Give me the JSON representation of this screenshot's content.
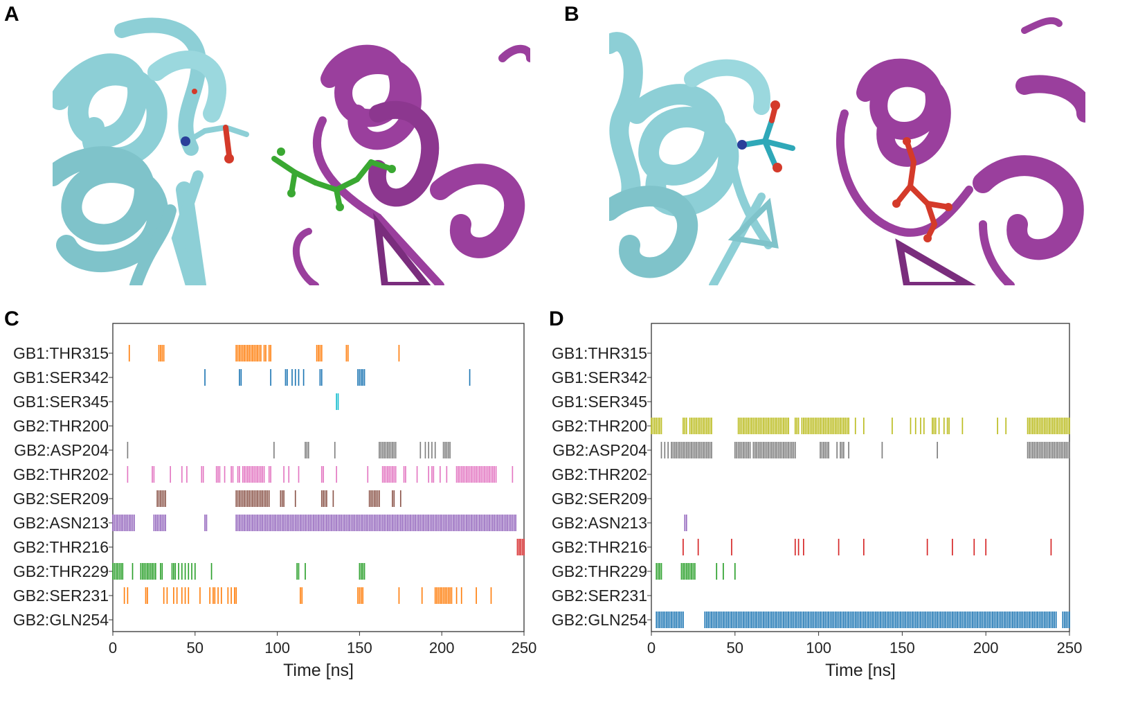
{
  "panels": {
    "a": "A",
    "b": "B",
    "c": "C",
    "d": "D"
  },
  "icons": {
    "panel_a": "protein-complex-green-ligand-icon",
    "panel_b": "protein-complex-red-ligand-icon"
  },
  "colors": {
    "cyan_protein": "#8dcfd6",
    "magenta_protein": "#9a3f9d",
    "green_ligand": "#3aa832",
    "red_ligand": "#d43a2a"
  },
  "chart_data": [
    {
      "type": "event",
      "panel": "C",
      "xlabel": "Time [ns]",
      "xlim": [
        0,
        250
      ],
      "xticks": [
        0,
        50,
        100,
        150,
        200,
        250
      ],
      "series": [
        {
          "name": "GB1:THR315",
          "color": "#ff7f0e",
          "x": [
            10,
            28,
            29,
            30,
            31,
            75,
            76,
            77,
            78,
            79,
            80,
            81,
            82,
            83,
            84,
            85,
            86,
            87,
            88,
            89,
            90,
            92,
            93,
            95,
            96,
            124,
            125,
            126,
            127,
            142,
            143,
            174
          ]
        },
        {
          "name": "GB1:SER342",
          "color": "#1f77b4",
          "x": [
            56,
            77,
            78,
            96,
            105,
            106,
            109,
            111,
            113,
            116,
            126,
            127,
            149,
            150,
            151,
            152,
            153,
            217
          ]
        },
        {
          "name": "GB1:SER345",
          "color": "#17becf",
          "x": [
            136,
            137
          ]
        },
        {
          "name": "GB2:THR200",
          "color": "#bcbd22",
          "x": []
        },
        {
          "name": "GB2:ASP204",
          "color": "#7f7f7f",
          "x": [
            9,
            98,
            117,
            118,
            119,
            135,
            162,
            163,
            164,
            165,
            166,
            167,
            168,
            169,
            170,
            171,
            172,
            187,
            190,
            192,
            194,
            196,
            201,
            202,
            203,
            204,
            205
          ]
        },
        {
          "name": "GB2:THR202",
          "color": "#e377c2",
          "x": [
            9,
            24,
            25,
            35,
            42,
            45,
            54,
            55,
            63,
            64,
            65,
            68,
            72,
            73,
            76,
            77,
            79,
            80,
            81,
            82,
            83,
            84,
            85,
            86,
            87,
            88,
            89,
            90,
            91,
            92,
            95,
            96,
            104,
            107,
            113,
            127,
            128,
            136,
            155,
            164,
            165,
            166,
            167,
            168,
            169,
            170,
            171,
            172,
            177,
            178,
            185,
            192,
            194,
            195,
            199,
            203,
            209,
            210,
            211,
            212,
            213,
            214,
            215,
            216,
            217,
            218,
            219,
            220,
            221,
            222,
            223,
            224,
            225,
            226,
            227,
            228,
            229,
            230,
            231,
            232,
            233,
            243
          ]
        },
        {
          "name": "GB2:SER209",
          "color": "#8c564b",
          "x": [
            27,
            28,
            29,
            30,
            31,
            32,
            75,
            76,
            77,
            78,
            79,
            80,
            81,
            82,
            83,
            84,
            85,
            86,
            87,
            88,
            89,
            90,
            91,
            92,
            93,
            94,
            95,
            102,
            103,
            104,
            111,
            127,
            128,
            129,
            130,
            134,
            156,
            157,
            158,
            159,
            160,
            161,
            162,
            170,
            171,
            175
          ]
        },
        {
          "name": "GB2:ASN213",
          "color": "#9467bd",
          "x": [
            0,
            1,
            2,
            3,
            4,
            5,
            6,
            7,
            8,
            9,
            10,
            11,
            12,
            13,
            25,
            26,
            27,
            28,
            29,
            30,
            31,
            32,
            56,
            57,
            75,
            76,
            77,
            78,
            79,
            80,
            81,
            82,
            83,
            84,
            85,
            86,
            87,
            88,
            89,
            90,
            91,
            92,
            93,
            94,
            95,
            96,
            97,
            98,
            99,
            100,
            101,
            102,
            103,
            104,
            105,
            106,
            107,
            108,
            109,
            110,
            111,
            112,
            113,
            114,
            115,
            116,
            117,
            118,
            119,
            120,
            121,
            122,
            123,
            124,
            125,
            126,
            127,
            128,
            129,
            130,
            131,
            132,
            133,
            134,
            135,
            136,
            137,
            138,
            139,
            140,
            141,
            142,
            143,
            144,
            145,
            146,
            147,
            148,
            149,
            150,
            151,
            152,
            153,
            154,
            155,
            156,
            157,
            158,
            159,
            160,
            161,
            162,
            163,
            164,
            165,
            166,
            167,
            168,
            169,
            170,
            171,
            172,
            173,
            174,
            175,
            176,
            177,
            178,
            179,
            180,
            181,
            182,
            183,
            184,
            185,
            186,
            187,
            188,
            189,
            190,
            191,
            192,
            193,
            194,
            195,
            196,
            197,
            198,
            199,
            200,
            201,
            202,
            203,
            204,
            205,
            206,
            207,
            208,
            209,
            210,
            211,
            212,
            213,
            214,
            215,
            216,
            217,
            218,
            219,
            220,
            221,
            222,
            223,
            224,
            225,
            226,
            227,
            228,
            229,
            230,
            231,
            232,
            233,
            234,
            235,
            236,
            237,
            238,
            239,
            240,
            241,
            242,
            243,
            244,
            245
          ]
        },
        {
          "name": "GB2:THR216",
          "color": "#d62728",
          "x": [
            246,
            247,
            248,
            249,
            250
          ]
        },
        {
          "name": "GB2:THR229",
          "color": "#2ca02c",
          "x": [
            0,
            1,
            2,
            3,
            4,
            5,
            6,
            12,
            17,
            18,
            19,
            20,
            21,
            22,
            23,
            24,
            25,
            26,
            29,
            30,
            36,
            37,
            38,
            40,
            42,
            44,
            46,
            48,
            50,
            60,
            112,
            113,
            117,
            150,
            151,
            152,
            153
          ]
        },
        {
          "name": "GB2:SER231",
          "color": "#ff7f0e",
          "x": [
            7,
            9,
            20,
            21,
            31,
            33,
            37,
            39,
            42,
            44,
            46,
            53,
            59,
            61,
            62,
            64,
            66,
            70,
            72,
            74,
            75,
            114,
            115,
            149,
            150,
            151,
            152,
            174,
            188,
            196,
            197,
            198,
            199,
            200,
            201,
            202,
            203,
            204,
            205,
            206,
            209,
            212,
            221,
            230
          ]
        },
        {
          "name": "GB2:GLN254",
          "color": "#1f77b4",
          "x": []
        }
      ]
    },
    {
      "type": "event",
      "panel": "D",
      "xlabel": "Time [ns]",
      "xlim": [
        0,
        250
      ],
      "xticks": [
        0,
        50,
        100,
        150,
        200,
        250
      ],
      "series": [
        {
          "name": "GB1:THR315",
          "color": "#ff7f0e",
          "x": []
        },
        {
          "name": "GB1:SER342",
          "color": "#1f77b4",
          "x": []
        },
        {
          "name": "GB1:SER345",
          "color": "#17becf",
          "x": []
        },
        {
          "name": "GB2:THR200",
          "color": "#bcbd22",
          "x": [
            0,
            1,
            2,
            3,
            4,
            5,
            6,
            19,
            20,
            21,
            23,
            24,
            25,
            26,
            27,
            28,
            29,
            30,
            31,
            32,
            33,
            34,
            35,
            36,
            52,
            53,
            54,
            55,
            56,
            57,
            58,
            59,
            60,
            61,
            62,
            63,
            64,
            65,
            66,
            67,
            68,
            69,
            70,
            71,
            72,
            73,
            74,
            75,
            76,
            77,
            78,
            79,
            80,
            81,
            82,
            86,
            87,
            88,
            90,
            91,
            92,
            93,
            94,
            95,
            96,
            97,
            98,
            99,
            100,
            101,
            102,
            103,
            104,
            105,
            106,
            107,
            108,
            109,
            110,
            111,
            112,
            113,
            114,
            115,
            116,
            117,
            118,
            122,
            127,
            144,
            155,
            158,
            161,
            163,
            168,
            169,
            170,
            172,
            175,
            177,
            178,
            186,
            207,
            212,
            225,
            226,
            227,
            228,
            229,
            230,
            231,
            232,
            233,
            234,
            235,
            236,
            237,
            238,
            239,
            240,
            241,
            242,
            243,
            244,
            245,
            246,
            247,
            248,
            249,
            250
          ]
        },
        {
          "name": "GB2:ASP204",
          "color": "#7f7f7f",
          "x": [
            6,
            8,
            10,
            12,
            13,
            14,
            15,
            16,
            17,
            18,
            19,
            20,
            21,
            22,
            23,
            24,
            25,
            26,
            27,
            28,
            29,
            30,
            31,
            32,
            33,
            34,
            35,
            36,
            50,
            51,
            52,
            53,
            54,
            55,
            56,
            57,
            58,
            59,
            61,
            62,
            63,
            64,
            65,
            66,
            67,
            68,
            69,
            70,
            71,
            72,
            73,
            74,
            75,
            76,
            77,
            78,
            79,
            80,
            81,
            82,
            83,
            84,
            85,
            86,
            101,
            102,
            103,
            104,
            105,
            106,
            111,
            113,
            114,
            115,
            118,
            138,
            171,
            225,
            226,
            227,
            228,
            229,
            230,
            231,
            232,
            233,
            234,
            235,
            236,
            237,
            238,
            239,
            240,
            241,
            242,
            243,
            244,
            245,
            246,
            247,
            248,
            249,
            250
          ]
        },
        {
          "name": "GB2:THR202",
          "color": "#e377c2",
          "x": []
        },
        {
          "name": "GB2:SER209",
          "color": "#8c564b",
          "x": []
        },
        {
          "name": "GB2:ASN213",
          "color": "#9467bd",
          "x": [
            20,
            21
          ]
        },
        {
          "name": "GB2:THR216",
          "color": "#d62728",
          "x": [
            19,
            28,
            48,
            86,
            88,
            91,
            112,
            127,
            165,
            180,
            193,
            200,
            239
          ]
        },
        {
          "name": "GB2:THR229",
          "color": "#2ca02c",
          "x": [
            3,
            4,
            5,
            6,
            18,
            19,
            20,
            21,
            22,
            23,
            24,
            25,
            26,
            39,
            43,
            50
          ]
        },
        {
          "name": "GB2:SER231",
          "color": "#ff7f0e",
          "x": []
        },
        {
          "name": "GB2:GLN254",
          "color": "#1f77b4",
          "x": [
            3,
            4,
            5,
            6,
            7,
            8,
            9,
            10,
            11,
            12,
            13,
            14,
            15,
            16,
            17,
            18,
            19,
            32,
            33,
            34,
            35,
            36,
            37,
            38,
            39,
            40,
            41,
            42,
            43,
            44,
            45,
            46,
            47,
            48,
            49,
            50,
            51,
            52,
            53,
            54,
            55,
            56,
            57,
            58,
            59,
            60,
            61,
            62,
            63,
            64,
            65,
            66,
            67,
            68,
            69,
            70,
            71,
            72,
            73,
            74,
            75,
            76,
            77,
            78,
            79,
            80,
            81,
            82,
            83,
            84,
            85,
            86,
            87,
            88,
            89,
            90,
            91,
            92,
            93,
            94,
            95,
            96,
            97,
            98,
            99,
            100,
            101,
            102,
            103,
            104,
            105,
            106,
            107,
            108,
            109,
            110,
            111,
            112,
            113,
            114,
            115,
            116,
            117,
            118,
            119,
            120,
            121,
            122,
            123,
            124,
            125,
            126,
            127,
            128,
            129,
            130,
            131,
            132,
            133,
            134,
            135,
            136,
            137,
            138,
            139,
            140,
            141,
            142,
            143,
            144,
            145,
            146,
            147,
            148,
            149,
            150,
            151,
            152,
            153,
            154,
            155,
            156,
            157,
            158,
            159,
            160,
            161,
            162,
            163,
            164,
            165,
            166,
            167,
            168,
            169,
            170,
            171,
            172,
            173,
            174,
            175,
            176,
            177,
            178,
            179,
            180,
            181,
            182,
            183,
            184,
            185,
            186,
            187,
            188,
            189,
            190,
            191,
            192,
            193,
            194,
            195,
            196,
            197,
            198,
            199,
            200,
            201,
            202,
            203,
            204,
            205,
            206,
            207,
            208,
            209,
            210,
            211,
            212,
            213,
            214,
            215,
            216,
            217,
            218,
            219,
            220,
            221,
            222,
            223,
            224,
            225,
            226,
            227,
            228,
            229,
            230,
            231,
            232,
            233,
            234,
            235,
            236,
            237,
            238,
            239,
            240,
            241,
            242,
            246,
            247,
            248,
            249,
            250
          ]
        }
      ]
    }
  ]
}
